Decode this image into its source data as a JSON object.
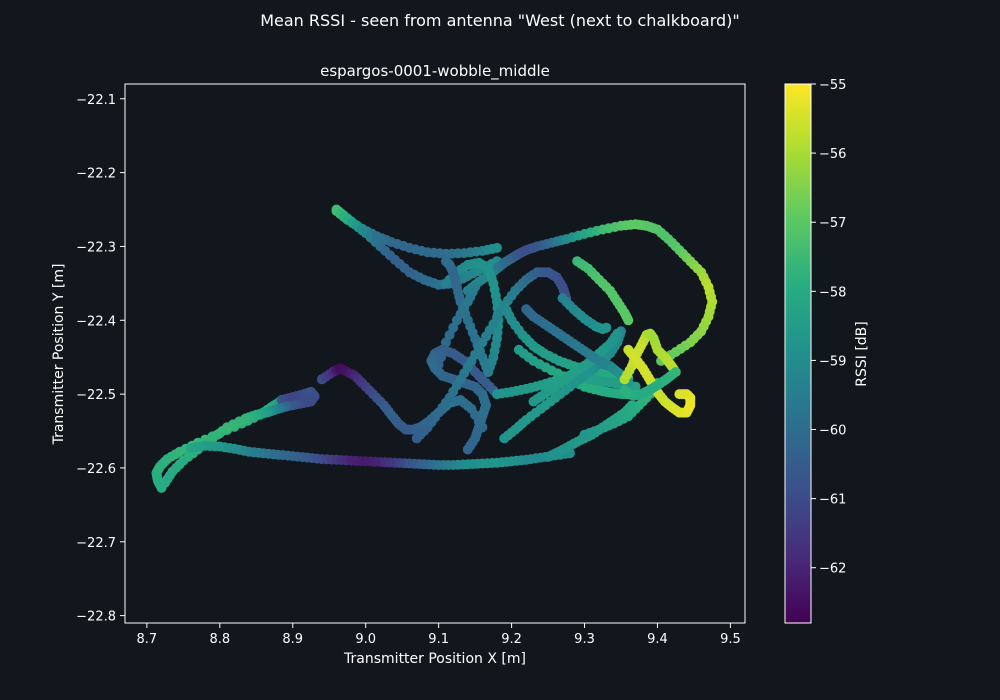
{
  "figure_title": "Mean RSSI - seen from antenna \"West (next to chalkboard)\"",
  "chart_data": {
    "type": "scatter",
    "title": "espargos-0001-wobble_middle",
    "xlabel": "Transmitter Position X [m]",
    "ylabel": "Transmitter Position Y [m]",
    "xlim": [
      8.67,
      9.52
    ],
    "ylim": [
      -22.81,
      -22.08
    ],
    "xticks": [
      "8.7",
      "8.8",
      "8.9",
      "9.0",
      "9.1",
      "9.2",
      "9.3",
      "9.4",
      "9.5"
    ],
    "yticks": [
      "−22.1",
      "−22.2",
      "−22.3",
      "−22.4",
      "−22.5",
      "−22.6",
      "−22.7",
      "−22.8"
    ],
    "grid": false,
    "colormap": "viridis",
    "colorbar": {
      "label": "RSSI [dB]",
      "range": [
        -62.8,
        -55.0
      ],
      "ticks": [
        "−55",
        "−56",
        "−57",
        "−58",
        "−59",
        "−60",
        "−61",
        "−62"
      ]
    },
    "paths": [
      {
        "x": [
          8.72,
          8.715,
          8.713,
          8.718,
          8.728,
          8.745,
          8.77,
          8.8,
          8.83,
          8.855,
          8.87,
          8.88,
          8.885
        ],
        "y": [
          -22.627,
          -22.617,
          -22.607,
          -22.598,
          -22.588,
          -22.578,
          -22.566,
          -22.553,
          -22.54,
          -22.528,
          -22.518,
          -22.512,
          -22.508
        ],
        "rssi": [
          -57.9,
          -57.9,
          -57.9,
          -57.8,
          -57.8,
          -57.7,
          -57.6,
          -57.7,
          -57.8,
          -57.9,
          -58.0,
          -58.2,
          -58.4
        ]
      },
      {
        "x": [
          8.885,
          8.9,
          8.915,
          8.925,
          8.93,
          8.925,
          8.91,
          8.895,
          8.88,
          8.865,
          8.85,
          8.835,
          8.81,
          8.79,
          8.77,
          8.75,
          8.735,
          8.725
        ],
        "y": [
          -22.508,
          -22.504,
          -22.5,
          -22.497,
          -22.503,
          -22.51,
          -22.513,
          -22.516,
          -22.52,
          -22.525,
          -22.528,
          -22.533,
          -22.545,
          -22.56,
          -22.575,
          -22.59,
          -22.605,
          -22.62
        ],
        "rssi": [
          -60.8,
          -61.2,
          -61.0,
          -60.8,
          -60.9,
          -61.0,
          -61.0,
          -60.5,
          -59.5,
          -58.6,
          -58.0,
          -57.7,
          -57.6,
          -57.7,
          -57.8,
          -57.9,
          -58.0,
          -58.0
        ]
      },
      {
        "x": [
          8.76,
          8.78,
          8.8,
          8.82,
          8.84,
          8.86,
          8.88,
          8.9,
          8.92,
          8.94,
          8.96,
          8.98,
          9.0,
          9.02,
          9.04,
          9.06,
          9.08,
          9.1,
          9.12,
          9.14,
          9.16,
          9.18,
          9.2,
          9.22,
          9.24,
          9.26,
          9.28
        ],
        "y": [
          -22.573,
          -22.57,
          -22.571,
          -22.574,
          -22.578,
          -22.58,
          -22.582,
          -22.584,
          -22.586,
          -22.588,
          -22.589,
          -22.59,
          -22.591,
          -22.592,
          -22.593,
          -22.594,
          -22.595,
          -22.596,
          -22.596,
          -22.595,
          -22.594,
          -22.593,
          -22.591,
          -22.589,
          -22.586,
          -22.583,
          -22.58
        ],
        "rssi": [
          -58.2,
          -58.4,
          -58.6,
          -58.9,
          -59.3,
          -59.7,
          -60.0,
          -60.3,
          -60.6,
          -61.0,
          -61.5,
          -62.0,
          -62.2,
          -62.0,
          -61.5,
          -60.8,
          -60.3,
          -59.8,
          -59.4,
          -59.0,
          -58.8,
          -58.7,
          -58.8,
          -59.0,
          -59.1,
          -59.0,
          -58.9
        ]
      },
      {
        "x": [
          8.94,
          8.955,
          8.965,
          8.975,
          8.985,
          8.995,
          9.01,
          9.025,
          9.035,
          9.045,
          9.055,
          9.065,
          9.075,
          9.085,
          9.1,
          9.115,
          9.13,
          9.145,
          9.16
        ],
        "y": [
          -22.48,
          -22.47,
          -22.465,
          -22.47,
          -22.475,
          -22.485,
          -22.5,
          -22.515,
          -22.528,
          -22.54,
          -22.548,
          -22.548,
          -22.545,
          -22.538,
          -22.525,
          -22.512,
          -22.508,
          -22.52,
          -22.545
        ],
        "rssi": [
          -61.0,
          -61.8,
          -62.6,
          -62.4,
          -62.0,
          -61.5,
          -61.0,
          -60.6,
          -60.4,
          -60.5,
          -60.6,
          -60.5,
          -60.3,
          -60.1,
          -59.9,
          -59.8,
          -59.9,
          -60.0,
          -60.2
        ]
      },
      {
        "x": [
          8.96,
          8.97,
          8.985,
          9.0,
          9.02,
          9.04,
          9.06,
          9.08,
          9.1,
          9.12,
          9.14,
          9.16,
          9.18
        ],
        "y": [
          -22.25,
          -22.258,
          -22.27,
          -22.282,
          -22.3,
          -22.318,
          -22.335,
          -22.345,
          -22.352,
          -22.35,
          -22.34,
          -22.33,
          -22.32
        ],
        "rssi": [
          -57.5,
          -57.8,
          -58.5,
          -59.2,
          -60.0,
          -60.4,
          -60.3,
          -60.1,
          -59.9,
          -59.6,
          -59.3,
          -59.1,
          -59.0
        ]
      },
      {
        "x": [
          8.96,
          8.975,
          8.995,
          9.015,
          9.035,
          9.06,
          9.085,
          9.11,
          9.135,
          9.16,
          9.18
        ],
        "y": [
          -22.252,
          -22.264,
          -22.276,
          -22.286,
          -22.294,
          -22.302,
          -22.308,
          -22.31,
          -22.309,
          -22.306,
          -22.302
        ],
        "rssi": [
          -57.4,
          -58.0,
          -59.0,
          -59.8,
          -60.1,
          -60.2,
          -60.1,
          -60.0,
          -59.7,
          -59.3,
          -58.9
        ]
      },
      {
        "x": [
          9.14,
          9.155,
          9.17,
          9.18,
          9.19,
          9.2,
          9.21,
          9.22,
          9.235,
          9.255,
          9.275,
          9.3,
          9.325,
          9.35,
          9.37,
          9.385,
          9.4,
          9.415,
          9.43,
          9.445,
          9.46,
          9.47,
          9.475,
          9.47,
          9.46,
          9.445,
          9.425,
          9.405
        ],
        "y": [
          -22.36,
          -22.348,
          -22.338,
          -22.33,
          -22.322,
          -22.316,
          -22.31,
          -22.305,
          -22.3,
          -22.295,
          -22.29,
          -22.283,
          -22.277,
          -22.272,
          -22.27,
          -22.272,
          -22.277,
          -22.29,
          -22.305,
          -22.32,
          -22.335,
          -22.355,
          -22.375,
          -22.395,
          -22.415,
          -22.43,
          -22.443,
          -22.455
        ],
        "rssi": [
          -59.4,
          -59.2,
          -59.3,
          -59.6,
          -60.0,
          -60.3,
          -60.7,
          -60.9,
          -60.8,
          -60.0,
          -59.1,
          -58.2,
          -57.5,
          -57.1,
          -56.9,
          -57.0,
          -57.1,
          -57.2,
          -57.0,
          -56.6,
          -56.2,
          -55.8,
          -55.9,
          -56.1,
          -56.3,
          -56.5,
          -56.8,
          -57.0
        ]
      },
      {
        "x": [
          9.11,
          9.125,
          9.14,
          9.155,
          9.168,
          9.175,
          9.18,
          9.182,
          9.18,
          9.175,
          9.168
        ],
        "y": [
          -22.35,
          -22.335,
          -22.325,
          -22.322,
          -22.33,
          -22.35,
          -22.375,
          -22.4,
          -22.425,
          -22.45,
          -22.47
        ],
        "rssi": [
          -59.4,
          -59.2,
          -59.0,
          -58.9,
          -58.8,
          -58.8,
          -58.9,
          -59.0,
          -59.1,
          -59.2,
          -59.3
        ]
      },
      {
        "x": [
          9.168,
          9.16,
          9.15,
          9.14,
          9.13,
          9.125,
          9.12,
          9.115,
          9.11
        ],
        "y": [
          -22.47,
          -22.45,
          -22.425,
          -22.4,
          -22.375,
          -22.355,
          -22.335,
          -22.325,
          -22.32
        ],
        "rssi": [
          -59.5,
          -59.6,
          -59.8,
          -59.9,
          -60.0,
          -60.1,
          -60.2,
          -60.1,
          -60.0
        ]
      },
      {
        "x": [
          9.1,
          9.11,
          9.125,
          9.14,
          9.15
        ],
        "y": [
          -22.46,
          -22.43,
          -22.4,
          -22.375,
          -22.355
        ],
        "rssi": [
          -60.3,
          -60.1,
          -59.9,
          -59.7,
          -59.5
        ]
      },
      {
        "x": [
          9.14,
          9.15,
          9.155,
          9.16,
          9.165,
          9.16,
          9.15,
          9.135,
          9.12,
          9.105,
          9.095,
          9.09,
          9.095,
          9.105,
          9.12,
          9.135,
          9.15,
          9.165,
          9.18
        ],
        "y": [
          -22.575,
          -22.56,
          -22.545,
          -22.53,
          -22.515,
          -22.5,
          -22.49,
          -22.485,
          -22.48,
          -22.475,
          -22.465,
          -22.455,
          -22.445,
          -22.44,
          -22.445,
          -22.455,
          -22.47,
          -22.485,
          -22.5
        ],
        "rssi": [
          -60.3,
          -60.2,
          -60.1,
          -60.0,
          -59.9,
          -60.0,
          -60.2,
          -60.3,
          -60.3,
          -60.2,
          -60.1,
          -60.0,
          -60.2,
          -60.4,
          -60.5,
          -60.6,
          -60.6,
          -60.5,
          -60.4
        ]
      },
      {
        "x": [
          9.07,
          9.085,
          9.1,
          9.115,
          9.13,
          9.145,
          9.16,
          9.175,
          9.19,
          9.205,
          9.22,
          9.235,
          9.25,
          9.262,
          9.27,
          9.275
        ],
        "y": [
          -22.56,
          -22.545,
          -22.525,
          -22.505,
          -22.48,
          -22.455,
          -22.43,
          -22.405,
          -22.38,
          -22.36,
          -22.345,
          -22.335,
          -22.335,
          -22.342,
          -22.355,
          -22.37
        ],
        "rssi": [
          -60.5,
          -60.3,
          -60.1,
          -59.9,
          -59.7,
          -59.6,
          -59.5,
          -59.4,
          -59.4,
          -59.5,
          -60.0,
          -60.4,
          -60.6,
          -60.8,
          -60.9,
          -60.9
        ]
      },
      {
        "x": [
          9.19,
          9.2,
          9.215,
          9.23,
          9.245,
          9.265,
          9.285,
          9.305,
          9.325,
          9.345,
          9.36
        ],
        "y": [
          -22.38,
          -22.4,
          -22.42,
          -22.435,
          -22.445,
          -22.455,
          -22.462,
          -22.468,
          -22.472,
          -22.475,
          -22.478
        ],
        "rssi": [
          -59.2,
          -59.0,
          -58.8,
          -58.6,
          -58.5,
          -58.4,
          -58.3,
          -58.2,
          -58.1,
          -58.0,
          -58.0
        ]
      },
      {
        "x": [
          9.21,
          9.23,
          9.255,
          9.28,
          9.3,
          9.32,
          9.335,
          9.35,
          9.36
        ],
        "y": [
          -22.44,
          -22.455,
          -22.468,
          -22.48,
          -22.49,
          -22.495,
          -22.498,
          -22.5,
          -22.5
        ],
        "rssi": [
          -58.6,
          -58.4,
          -58.2,
          -58.0,
          -57.9,
          -57.9,
          -58.0,
          -58.0,
          -58.1
        ]
      },
      {
        "x": [
          9.18,
          9.2,
          9.22,
          9.24,
          9.26,
          9.28,
          9.295,
          9.31,
          9.325,
          9.34,
          9.355,
          9.37
        ],
        "y": [
          -22.5,
          -22.497,
          -22.493,
          -22.488,
          -22.482,
          -22.478,
          -22.478,
          -22.48,
          -22.483,
          -22.485,
          -22.488,
          -22.49
        ],
        "rssi": [
          -58.8,
          -58.7,
          -58.6,
          -58.5,
          -58.4,
          -58.3,
          -58.3,
          -58.4,
          -58.4,
          -58.5,
          -58.4,
          -58.3
        ]
      },
      {
        "x": [
          9.19,
          9.205,
          9.22,
          9.24,
          9.26,
          9.28,
          9.3,
          9.32,
          9.335,
          9.345,
          9.35
        ],
        "y": [
          -22.56,
          -22.548,
          -22.535,
          -22.52,
          -22.505,
          -22.49,
          -22.475,
          -22.46,
          -22.445,
          -22.43,
          -22.415
        ],
        "rssi": [
          -58.8,
          -58.7,
          -58.6,
          -58.6,
          -58.6,
          -58.7,
          -58.8,
          -58.9,
          -59.0,
          -59.1,
          -59.2
        ]
      },
      {
        "x": [
          9.23,
          9.245,
          9.26,
          9.275,
          9.29,
          9.305,
          9.32,
          9.335,
          9.345
        ],
        "y": [
          -22.51,
          -22.5,
          -22.49,
          -22.478,
          -22.468,
          -22.458,
          -22.445,
          -22.432,
          -22.418
        ],
        "rssi": [
          -58.7,
          -58.6,
          -58.5,
          -58.4,
          -58.4,
          -58.5,
          -58.6,
          -58.7,
          -58.8
        ]
      },
      {
        "x": [
          9.22,
          9.23,
          9.245,
          9.26,
          9.275,
          9.29,
          9.305,
          9.32,
          9.335,
          9.345,
          9.355,
          9.36
        ],
        "y": [
          -22.385,
          -22.395,
          -22.405,
          -22.415,
          -22.425,
          -22.435,
          -22.445,
          -22.455,
          -22.462,
          -22.47,
          -22.478,
          -22.485
        ],
        "rssi": [
          -60.2,
          -60.1,
          -60.0,
          -59.9,
          -59.8,
          -59.7,
          -59.6,
          -59.4,
          -59.2,
          -59.0,
          -58.8,
          -58.6
        ]
      },
      {
        "x": [
          9.27,
          9.285,
          9.3,
          9.315,
          9.325,
          9.33
        ],
        "y": [
          -22.37,
          -22.385,
          -22.398,
          -22.408,
          -22.412,
          -22.41
        ],
        "rssi": [
          -59.4,
          -59.2,
          -59.0,
          -58.9,
          -58.8,
          -58.8
        ]
      },
      {
        "x": [
          9.29,
          9.305,
          9.32,
          9.335,
          9.345,
          9.355,
          9.36
        ],
        "y": [
          -22.32,
          -22.33,
          -22.345,
          -22.36,
          -22.375,
          -22.39,
          -22.4
        ],
        "rssi": [
          -57.6,
          -57.4,
          -57.2,
          -57.1,
          -57.1,
          -57.0,
          -57.0
        ]
      },
      {
        "x": [
          9.25,
          9.265,
          9.28,
          9.295,
          9.31,
          9.325,
          9.34,
          9.355,
          9.365
        ],
        "y": [
          -22.585,
          -22.578,
          -22.57,
          -22.562,
          -22.555,
          -22.545,
          -22.535,
          -22.525,
          -22.515
        ],
        "rssi": [
          -58.9,
          -58.8,
          -58.7,
          -58.6,
          -58.5,
          -58.4,
          -58.3,
          -58.1,
          -58.0
        ]
      },
      {
        "x": [
          9.3,
          9.32,
          9.34,
          9.36,
          9.375,
          9.39,
          9.4
        ],
        "y": [
          -22.555,
          -22.548,
          -22.54,
          -22.53,
          -22.515,
          -22.5,
          -22.485
        ],
        "rssi": [
          -58.7,
          -58.5,
          -58.3,
          -58.1,
          -57.9,
          -57.7,
          -57.5
        ]
      },
      {
        "x": [
          9.355,
          9.365,
          9.372,
          9.38,
          9.385,
          9.39,
          9.395,
          9.4,
          9.41,
          9.418,
          9.425
        ],
        "y": [
          -22.48,
          -22.462,
          -22.445,
          -22.43,
          -22.42,
          -22.418,
          -22.425,
          -22.44,
          -22.45,
          -22.46,
          -22.47
        ],
        "rssi": [
          -55.9,
          -55.7,
          -55.6,
          -55.6,
          -55.8,
          -56.0,
          -56.1,
          -56.0,
          -55.9,
          -55.8,
          -55.8
        ]
      },
      {
        "x": [
          9.36,
          9.37,
          9.38,
          9.388,
          9.395,
          9.402,
          9.41,
          9.42,
          9.43,
          9.44,
          9.445,
          9.445,
          9.44,
          9.43
        ],
        "y": [
          -22.44,
          -22.452,
          -22.465,
          -22.478,
          -22.49,
          -22.5,
          -22.51,
          -22.518,
          -22.525,
          -22.525,
          -22.515,
          -22.505,
          -22.5,
          -22.5
        ],
        "rssi": [
          -55.6,
          -55.5,
          -55.5,
          -55.5,
          -55.6,
          -55.6,
          -55.6,
          -55.5,
          -55.4,
          -55.3,
          -55.2,
          -55.2,
          -55.3,
          -55.4
        ]
      },
      {
        "x": [
          9.425,
          9.412,
          9.4,
          9.388,
          9.378,
          9.368,
          9.36,
          9.355
        ],
        "y": [
          -22.47,
          -22.48,
          -22.488,
          -22.495,
          -22.5,
          -22.502,
          -22.5,
          -22.495
        ],
        "rssi": [
          -57.6,
          -57.8,
          -57.9,
          -58.0,
          -58.0,
          -58.0,
          -57.9,
          -57.8
        ]
      }
    ]
  }
}
